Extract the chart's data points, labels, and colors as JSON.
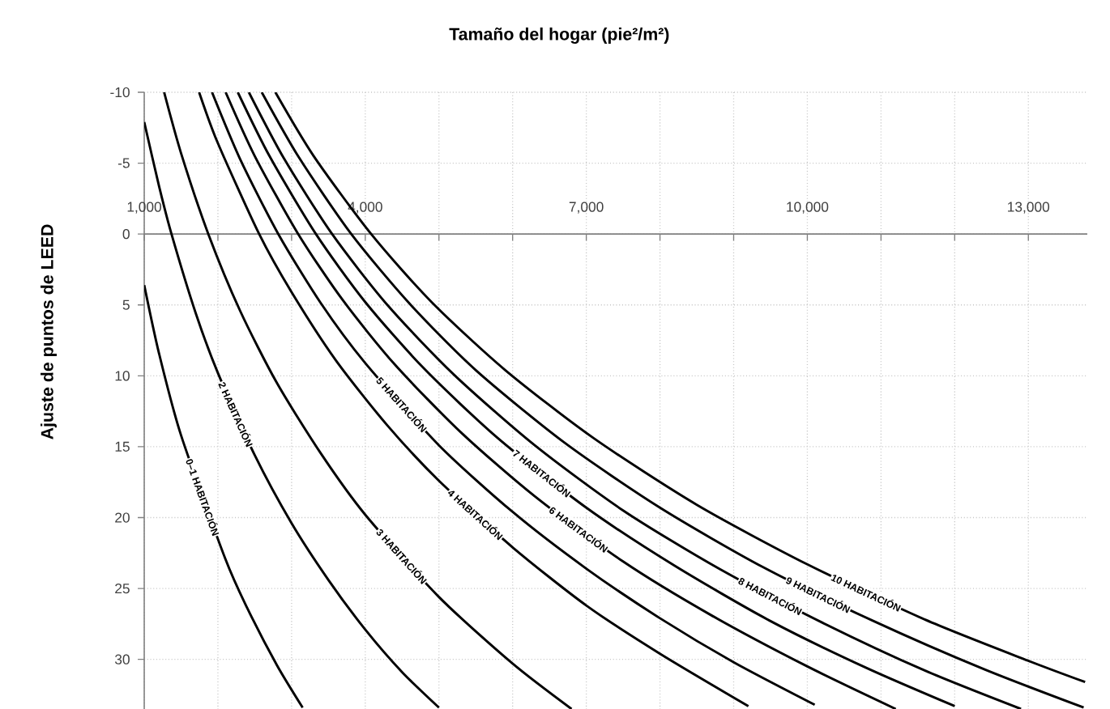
{
  "chart_data": {
    "type": "line",
    "xlabel": "Tamaño del hogar (pie²/m²)",
    "ylabel": "Ajuste de puntos de LEED",
    "xlim": [
      1000,
      13800
    ],
    "ylim": [
      33.5,
      -10
    ],
    "xticks": [
      {
        "value": 1000,
        "label": "1,000"
      },
      {
        "value": 2000,
        "label": null
      },
      {
        "value": 3000,
        "label": null
      },
      {
        "value": 4000,
        "label": "4,000"
      },
      {
        "value": 5000,
        "label": null
      },
      {
        "value": 6000,
        "label": null
      },
      {
        "value": 7000,
        "label": "7,000"
      },
      {
        "value": 8000,
        "label": null
      },
      {
        "value": 9000,
        "label": null
      },
      {
        "value": 10000,
        "label": "10,000"
      },
      {
        "value": 11000,
        "label": null
      },
      {
        "value": 12000,
        "label": null
      },
      {
        "value": 13000,
        "label": "13,000"
      }
    ],
    "yticks": [
      -10,
      -5,
      0,
      5,
      10,
      15,
      20,
      25,
      30
    ],
    "grid": true,
    "legend": false,
    "marker": "none",
    "line_style": "solid",
    "series": [
      {
        "name": "0–1 HABITACIÓN",
        "color": "#000000",
        "x": [
          1000,
          1200,
          1500,
          2100,
          2400,
          2800,
          3150
        ],
        "values": [
          3.6,
          8.4,
          14.2,
          22.9,
          26.4,
          30.4,
          33.4
        ]
      },
      {
        "name": "2 HABITACIÓN",
        "color": "#000000",
        "x": [
          1000,
          1200,
          1370,
          1700,
          2000,
          2500,
          3000,
          3500,
          4000,
          4500,
          5000
        ],
        "values": [
          -7.9,
          -3.4,
          0,
          5.6,
          9.8,
          15.6,
          20.4,
          24.4,
          27.9,
          30.9,
          33.4
        ]
      },
      {
        "name": "3 HABITACIÓN",
        "color": "#000000",
        "x": [
          1270,
          1500,
          1870,
          2300,
          2800,
          3400,
          4000,
          5000,
          6000,
          6800
        ],
        "values": [
          -10,
          -5.7,
          0,
          5.4,
          10.5,
          15.5,
          19.8,
          25.6,
          30.3,
          33.5
        ]
      },
      {
        "name": "4 HABITACIÓN",
        "color": "#000000",
        "x": [
          1745,
          2000,
          2560,
          3000,
          3600,
          4300,
          5000,
          6000,
          7000,
          8000,
          9200
        ],
        "values": [
          -10,
          -6.4,
          0,
          4.1,
          8.9,
          13.5,
          17.4,
          22.1,
          26.2,
          29.6,
          33.3
        ]
      },
      {
        "name": "5 HABITACIÓN",
        "color": "#000000",
        "x": [
          1920,
          2300,
          2820,
          3400,
          4000,
          5000,
          6000,
          7000,
          8000,
          9000,
          10100
        ],
        "values": [
          -10,
          -5.3,
          0,
          4.9,
          9.1,
          14.9,
          19.6,
          23.6,
          27.1,
          30.2,
          33.2
        ]
      },
      {
        "name": "6 HABITACIÓN",
        "color": "#000000",
        "x": [
          2105,
          2500,
          3090,
          3700,
          4400,
          5300,
          6300,
          7500,
          8700,
          10000,
          11200
        ],
        "values": [
          -10,
          -5.5,
          0,
          4.7,
          9.2,
          14.0,
          18.5,
          23.1,
          26.9,
          30.5,
          33.5
        ]
      },
      {
        "name": "7 HABITACIÓN",
        "color": "#000000",
        "x": [
          2270,
          2700,
          3330,
          4000,
          4800,
          5800,
          7000,
          8200,
          9500,
          10800,
          12000
        ],
        "values": [
          -10,
          -5.5,
          0,
          4.8,
          9.5,
          14.4,
          19.3,
          23.4,
          27.3,
          30.6,
          33.3
        ]
      },
      {
        "name": "8 HABITACIÓN",
        "color": "#000000",
        "x": [
          2420,
          2900,
          3550,
          4300,
          5200,
          6300,
          7500,
          8800,
          10200,
          11600,
          12900
        ],
        "values": [
          -10,
          -5.3,
          0,
          5.0,
          9.9,
          14.9,
          19.5,
          23.6,
          27.4,
          30.8,
          33.5
        ]
      },
      {
        "name": "9 HABITACIÓN",
        "color": "#000000",
        "x": [
          2595,
          3100,
          3810,
          4600,
          5500,
          6700,
          8000,
          9400,
          10900,
          12400,
          13750
        ],
        "values": [
          -10,
          -5.4,
          0,
          4.9,
          9.6,
          14.7,
          19.3,
          23.5,
          27.3,
          30.7,
          33.4
        ]
      },
      {
        "name": "10 HABITACIÓN",
        "color": "#000000",
        "x": [
          2780,
          3300,
          4080,
          4900,
          5900,
          7100,
          8500,
          10000,
          11600,
          13000,
          13770
        ],
        "values": [
          -10,
          -5.5,
          0,
          4.8,
          9.6,
          14.4,
          19.1,
          23.3,
          27.2,
          30.1,
          31.6
        ]
      }
    ]
  }
}
